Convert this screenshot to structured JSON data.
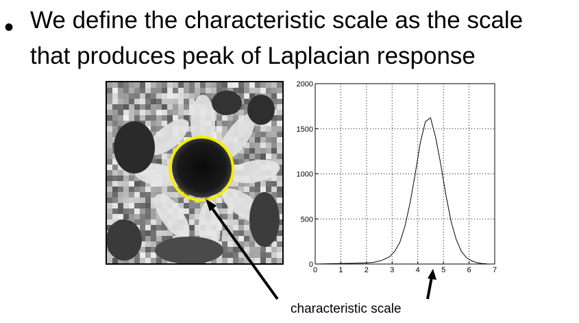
{
  "slide": {
    "bullet_char": "•",
    "line1": "We define the characteristic scale as the scale",
    "line2": "that produces peak of Laplacian response",
    "caption": "characteristic scale"
  },
  "colors": {
    "circle": "#f4ec00",
    "text": "#000000",
    "background": "#ffffff"
  },
  "chart_data": {
    "type": "line",
    "title": "",
    "xlabel": "",
    "ylabel": "",
    "xlim": [
      0,
      7
    ],
    "ylim": [
      0,
      2000
    ],
    "x_ticks": [
      "0",
      "1",
      "2",
      "3",
      "4",
      "5",
      "6",
      "7"
    ],
    "y_ticks": [
      "0",
      "500",
      "1000",
      "1500",
      "2000"
    ],
    "grid": true,
    "x": [
      0,
      0.5,
      1,
      1.5,
      2,
      2.3,
      2.6,
      2.9,
      3.1,
      3.3,
      3.5,
      3.7,
      3.9,
      4.1,
      4.3,
      4.5,
      4.7,
      4.9,
      5.1,
      5.3,
      5.5,
      5.7,
      5.9,
      6.1,
      6.3,
      6.5,
      6.7
    ],
    "y": [
      0,
      3,
      6,
      8,
      12,
      20,
      40,
      80,
      140,
      240,
      420,
      680,
      1000,
      1350,
      1580,
      1620,
      1400,
      1100,
      760,
      470,
      270,
      140,
      70,
      35,
      15,
      6,
      2
    ]
  }
}
